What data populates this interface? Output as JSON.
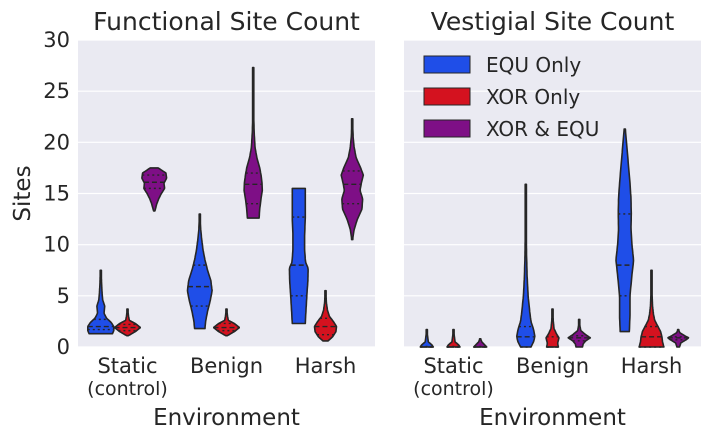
{
  "colors": {
    "background": "#eaeaf2",
    "grid": "#ffffff",
    "EQU Only": "#1f4ee8",
    "XOR Only": "#d4121f",
    "XOR & EQU": "#7e0f86",
    "outline": "#262626"
  },
  "chart_data": [
    {
      "type": "violin",
      "title": "Functional Site Count",
      "xlabel": "Environment",
      "ylabel": "Sites",
      "ylim": [
        0,
        30
      ],
      "yticks": [
        0,
        5,
        10,
        15,
        20,
        25,
        30
      ],
      "categories": [
        "Static\n(control)",
        "Benign",
        "Harsh"
      ],
      "grid": true,
      "series": [
        {
          "name": "EQU Only",
          "violins": [
            {
              "min": 1.3,
              "max": 7.5,
              "q1": 1.7,
              "median": 2.0,
              "q3": 2.7,
              "profile": [
                [
                  1.3,
                  0.9
                ],
                [
                  1.6,
                  1.0
                ],
                [
                  2.0,
                  1.0
                ],
                [
                  2.4,
                  0.8
                ],
                [
                  2.8,
                  0.45
                ],
                [
                  3.3,
                  0.25
                ],
                [
                  4.0,
                  0.3
                ],
                [
                  4.6,
                  0.15
                ],
                [
                  5.3,
                  0.1
                ],
                [
                  6.3,
                  0.06
                ],
                [
                  7.5,
                  0.03
                ]
              ]
            },
            {
              "min": 1.8,
              "max": 13.0,
              "q1": 4.0,
              "median": 5.9,
              "q3": 8.0,
              "profile": [
                [
                  1.8,
                  0.4
                ],
                [
                  2.5,
                  0.45
                ],
                [
                  3.5,
                  0.6
                ],
                [
                  4.5,
                  0.8
                ],
                [
                  5.5,
                  0.95
                ],
                [
                  6.5,
                  0.85
                ],
                [
                  7.5,
                  0.6
                ],
                [
                  8.5,
                  0.4
                ],
                [
                  9.5,
                  0.25
                ],
                [
                  10.5,
                  0.15
                ],
                [
                  11.5,
                  0.07
                ],
                [
                  13.0,
                  0.02
                ]
              ]
            },
            {
              "min": 2.3,
              "max": 15.5,
              "q1": 5.0,
              "median": 8.0,
              "q3": 12.7,
              "profile": [
                [
                  2.3,
                  0.5
                ],
                [
                  3.5,
                  0.55
                ],
                [
                  5.0,
                  0.62
                ],
                [
                  6.5,
                  0.7
                ],
                [
                  7.7,
                  0.72
                ],
                [
                  8.3,
                  0.52
                ],
                [
                  9.5,
                  0.45
                ],
                [
                  11.0,
                  0.45
                ],
                [
                  12.5,
                  0.5
                ],
                [
                  14.0,
                  0.5
                ],
                [
                  15.5,
                  0.5
                ]
              ]
            }
          ]
        },
        {
          "name": "XOR Only",
          "violins": [
            {
              "min": 1.1,
              "max": 3.7,
              "q1": 1.6,
              "median": 1.9,
              "q3": 2.2,
              "profile": [
                [
                  1.1,
                  0.05
                ],
                [
                  1.5,
                  0.6
                ],
                [
                  1.9,
                  1.0
                ],
                [
                  2.3,
                  0.6
                ],
                [
                  2.6,
                  0.15
                ],
                [
                  3.0,
                  0.08
                ],
                [
                  3.7,
                  0.02
                ]
              ]
            },
            {
              "min": 1.1,
              "max": 3.7,
              "q1": 1.6,
              "median": 1.9,
              "q3": 2.3,
              "profile": [
                [
                  1.1,
                  0.05
                ],
                [
                  1.5,
                  0.6
                ],
                [
                  1.9,
                  1.0
                ],
                [
                  2.3,
                  0.6
                ],
                [
                  2.6,
                  0.15
                ],
                [
                  3.0,
                  0.08
                ],
                [
                  3.7,
                  0.02
                ]
              ]
            },
            {
              "min": 0.6,
              "max": 5.5,
              "q1": 1.2,
              "median": 2.0,
              "q3": 2.8,
              "profile": [
                [
                  0.6,
                  0.2
                ],
                [
                  1.0,
                  0.55
                ],
                [
                  1.5,
                  0.8
                ],
                [
                  2.0,
                  0.85
                ],
                [
                  2.5,
                  0.6
                ],
                [
                  3.0,
                  0.3
                ],
                [
                  3.6,
                  0.15
                ],
                [
                  4.3,
                  0.07
                ],
                [
                  5.5,
                  0.02
                ]
              ]
            }
          ]
        },
        {
          "name": "XOR & EQU",
          "violins": [
            {
              "min": 13.3,
              "max": 17.5,
              "q1": 15.5,
              "median": 16.1,
              "q3": 16.8,
              "profile": [
                [
                  13.3,
                  0.05
                ],
                [
                  14.0,
                  0.2
                ],
                [
                  14.5,
                  0.35
                ],
                [
                  15.0,
                  0.55
                ],
                [
                  15.5,
                  0.8
                ],
                [
                  16.0,
                  0.75
                ],
                [
                  16.5,
                  0.95
                ],
                [
                  17.0,
                  0.9
                ],
                [
                  17.5,
                  0.3
                ]
              ]
            },
            {
              "min": 12.6,
              "max": 27.3,
              "q1": 14.0,
              "median": 15.9,
              "q3": 17.0,
              "profile": [
                [
                  12.6,
                  0.45
                ],
                [
                  13.5,
                  0.5
                ],
                [
                  14.5,
                  0.6
                ],
                [
                  15.3,
                  0.7
                ],
                [
                  16.0,
                  0.68
                ],
                [
                  16.8,
                  0.6
                ],
                [
                  17.5,
                  0.5
                ],
                [
                  18.5,
                  0.28
                ],
                [
                  19.5,
                  0.14
                ],
                [
                  21.0,
                  0.07
                ],
                [
                  23.0,
                  0.03
                ],
                [
                  25.0,
                  0.02
                ],
                [
                  27.3,
                  0.01
                ]
              ]
            },
            {
              "min": 10.5,
              "max": 22.3,
              "q1": 14.0,
              "median": 15.9,
              "q3": 17.2,
              "profile": [
                [
                  10.5,
                  0.03
                ],
                [
                  11.5,
                  0.15
                ],
                [
                  12.5,
                  0.4
                ],
                [
                  13.5,
                  0.75
                ],
                [
                  14.5,
                  0.8
                ],
                [
                  15.3,
                  0.6
                ],
                [
                  16.0,
                  0.7
                ],
                [
                  16.8,
                  0.85
                ],
                [
                  17.5,
                  0.65
                ],
                [
                  18.5,
                  0.3
                ],
                [
                  19.5,
                  0.15
                ],
                [
                  20.5,
                  0.07
                ],
                [
                  22.3,
                  0.02
                ]
              ]
            }
          ]
        }
      ]
    },
    {
      "type": "violin",
      "title": "Vestigial Site Count",
      "xlabel": "Environment",
      "ylabel": "",
      "ylim": [
        0,
        30
      ],
      "yticks": [
        0,
        5,
        10,
        15,
        20,
        25,
        30
      ],
      "categories": [
        "Static\n(control)",
        "Benign",
        "Harsh"
      ],
      "grid": true,
      "legend": {
        "placement": "top-left",
        "entries": [
          "EQU Only",
          "XOR Only",
          "XOR & EQU"
        ]
      },
      "series": [
        {
          "name": "EQU Only",
          "violins": [
            {
              "min": 0.0,
              "max": 1.7,
              "q1": 0.0,
              "median": 0.0,
              "q3": 0.05,
              "profile": [
                [
                  0.0,
                  0.5
                ],
                [
                  0.2,
                  0.4
                ],
                [
                  0.5,
                  0.12
                ],
                [
                  0.9,
                  0.08
                ],
                [
                  1.3,
                  0.04
                ],
                [
                  1.7,
                  0.02
                ]
              ]
            },
            {
              "min": 0.0,
              "max": 15.9,
              "q1": 0.0,
              "median": 1.0,
              "q3": 2.0,
              "profile": [
                [
                  0.0,
                  0.4
                ],
                [
                  0.5,
                  0.6
                ],
                [
                  1.0,
                  0.7
                ],
                [
                  1.7,
                  0.6
                ],
                [
                  2.5,
                  0.4
                ],
                [
                  3.5,
                  0.3
                ],
                [
                  5.0,
                  0.18
                ],
                [
                  7.0,
                  0.1
                ],
                [
                  9.0,
                  0.06
                ],
                [
                  11.0,
                  0.04
                ],
                [
                  13.0,
                  0.03
                ],
                [
                  15.9,
                  0.01
                ]
              ]
            },
            {
              "min": 1.5,
              "max": 21.3,
              "q1": 5.0,
              "median": 8.0,
              "q3": 13.0,
              "profile": [
                [
                  1.5,
                  0.35
                ],
                [
                  3.0,
                  0.4
                ],
                [
                  5.0,
                  0.4
                ],
                [
                  7.0,
                  0.55
                ],
                [
                  8.5,
                  0.68
                ],
                [
                  10.0,
                  0.55
                ],
                [
                  11.5,
                  0.48
                ],
                [
                  13.0,
                  0.5
                ],
                [
                  14.5,
                  0.48
                ],
                [
                  16.0,
                  0.4
                ],
                [
                  17.5,
                  0.3
                ],
                [
                  19.0,
                  0.2
                ],
                [
                  20.5,
                  0.1
                ],
                [
                  21.3,
                  0.04
                ]
              ]
            }
          ]
        },
        {
          "name": "XOR Only",
          "violins": [
            {
              "min": 0.0,
              "max": 1.7,
              "q1": 0.0,
              "median": 0.0,
              "q3": 0.05,
              "profile": [
                [
                  0.0,
                  0.5
                ],
                [
                  0.2,
                  0.4
                ],
                [
                  0.5,
                  0.12
                ],
                [
                  0.9,
                  0.08
                ],
                [
                  1.3,
                  0.04
                ],
                [
                  1.7,
                  0.02
                ]
              ]
            },
            {
              "min": 0.0,
              "max": 3.7,
              "q1": 0.0,
              "median": 0.0,
              "q3": 1.0,
              "profile": [
                [
                  0.0,
                  0.45
                ],
                [
                  0.4,
                  0.4
                ],
                [
                  0.9,
                  0.5
                ],
                [
                  1.3,
                  0.3
                ],
                [
                  1.8,
                  0.12
                ],
                [
                  2.5,
                  0.06
                ],
                [
                  3.7,
                  0.02
                ]
              ]
            },
            {
              "min": 0.0,
              "max": 7.5,
              "q1": 0.0,
              "median": 1.0,
              "q3": 2.0,
              "profile": [
                [
                  0.0,
                  0.95
                ],
                [
                  0.5,
                  0.85
                ],
                [
                  1.0,
                  0.8
                ],
                [
                  1.5,
                  0.7
                ],
                [
                  2.0,
                  0.5
                ],
                [
                  2.6,
                  0.25
                ],
                [
                  3.2,
                  0.15
                ],
                [
                  4.0,
                  0.08
                ],
                [
                  5.0,
                  0.05
                ],
                [
                  6.2,
                  0.03
                ],
                [
                  7.5,
                  0.01
                ]
              ]
            }
          ]
        },
        {
          "name": "XOR & EQU",
          "violins": [
            {
              "min": 0.0,
              "max": 0.8,
              "q1": 0.0,
              "median": 0.0,
              "q3": 0.05,
              "profile": [
                [
                  0.0,
                  0.5
                ],
                [
                  0.2,
                  0.35
                ],
                [
                  0.5,
                  0.12
                ],
                [
                  0.8,
                  0.03
                ]
              ]
            },
            {
              "min": 0.0,
              "max": 2.7,
              "q1": 0.6,
              "median": 0.9,
              "q3": 1.1,
              "profile": [
                [
                  0.0,
                  0.25
                ],
                [
                  0.3,
                  0.3
                ],
                [
                  0.6,
                  0.5
                ],
                [
                  0.9,
                  0.85
                ],
                [
                  1.2,
                  0.5
                ],
                [
                  1.6,
                  0.12
                ],
                [
                  2.1,
                  0.05
                ],
                [
                  2.7,
                  0.02
                ]
              ]
            },
            {
              "min": 0.0,
              "max": 1.7,
              "q1": 0.7,
              "median": 0.9,
              "q3": 1.0,
              "profile": [
                [
                  0.0,
                  0.1
                ],
                [
                  0.4,
                  0.2
                ],
                [
                  0.7,
                  0.6
                ],
                [
                  0.9,
                  0.8
                ],
                [
                  1.1,
                  0.5
                ],
                [
                  1.4,
                  0.12
                ],
                [
                  1.7,
                  0.02
                ]
              ]
            }
          ]
        }
      ]
    }
  ]
}
